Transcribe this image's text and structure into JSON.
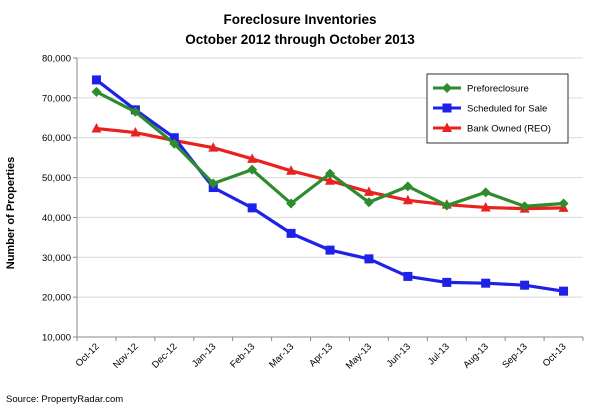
{
  "chart_data": {
    "type": "line",
    "title": "Foreclosure Inventories",
    "subtitle": "October 2012 through October 2013",
    "xlabel": "",
    "ylabel": "Number of Properties",
    "categories": [
      "Oct-12",
      "Nov-12",
      "Dec-12",
      "Jan-13",
      "Feb-13",
      "Mar-13",
      "Apr-13",
      "May-13",
      "Jun-13",
      "Jul-13",
      "Aug-13",
      "Sep-13",
      "Oct-13"
    ],
    "yticks": [
      "10,000",
      "20,000",
      "30,000",
      "40,000",
      "50,000",
      "60,000",
      "70,000",
      "80,000"
    ],
    "ylim": [
      10000,
      80000
    ],
    "grid": true,
    "legend_position": "top-right",
    "series": [
      {
        "name": "Preforeclosure",
        "color": "#2e8b2e",
        "marker": "diamond",
        "values": [
          71500,
          66500,
          58500,
          48500,
          52000,
          43500,
          51000,
          43800,
          47800,
          43000,
          46300,
          42800,
          43500
        ]
      },
      {
        "name": "Scheduled for Sale",
        "color": "#1e22e8",
        "marker": "square",
        "values": [
          74500,
          67000,
          60000,
          47500,
          42400,
          36000,
          31800,
          29600,
          25200,
          23700,
          23500,
          23000,
          21500
        ]
      },
      {
        "name": "Bank Owned (REO)",
        "color": "#e8221e",
        "marker": "triangle",
        "values": [
          62300,
          61300,
          59300,
          57500,
          54700,
          51700,
          49200,
          46400,
          44300,
          43200,
          42500,
          42200,
          42400
        ]
      }
    ]
  },
  "source": "Source: PropertyRadar.com"
}
